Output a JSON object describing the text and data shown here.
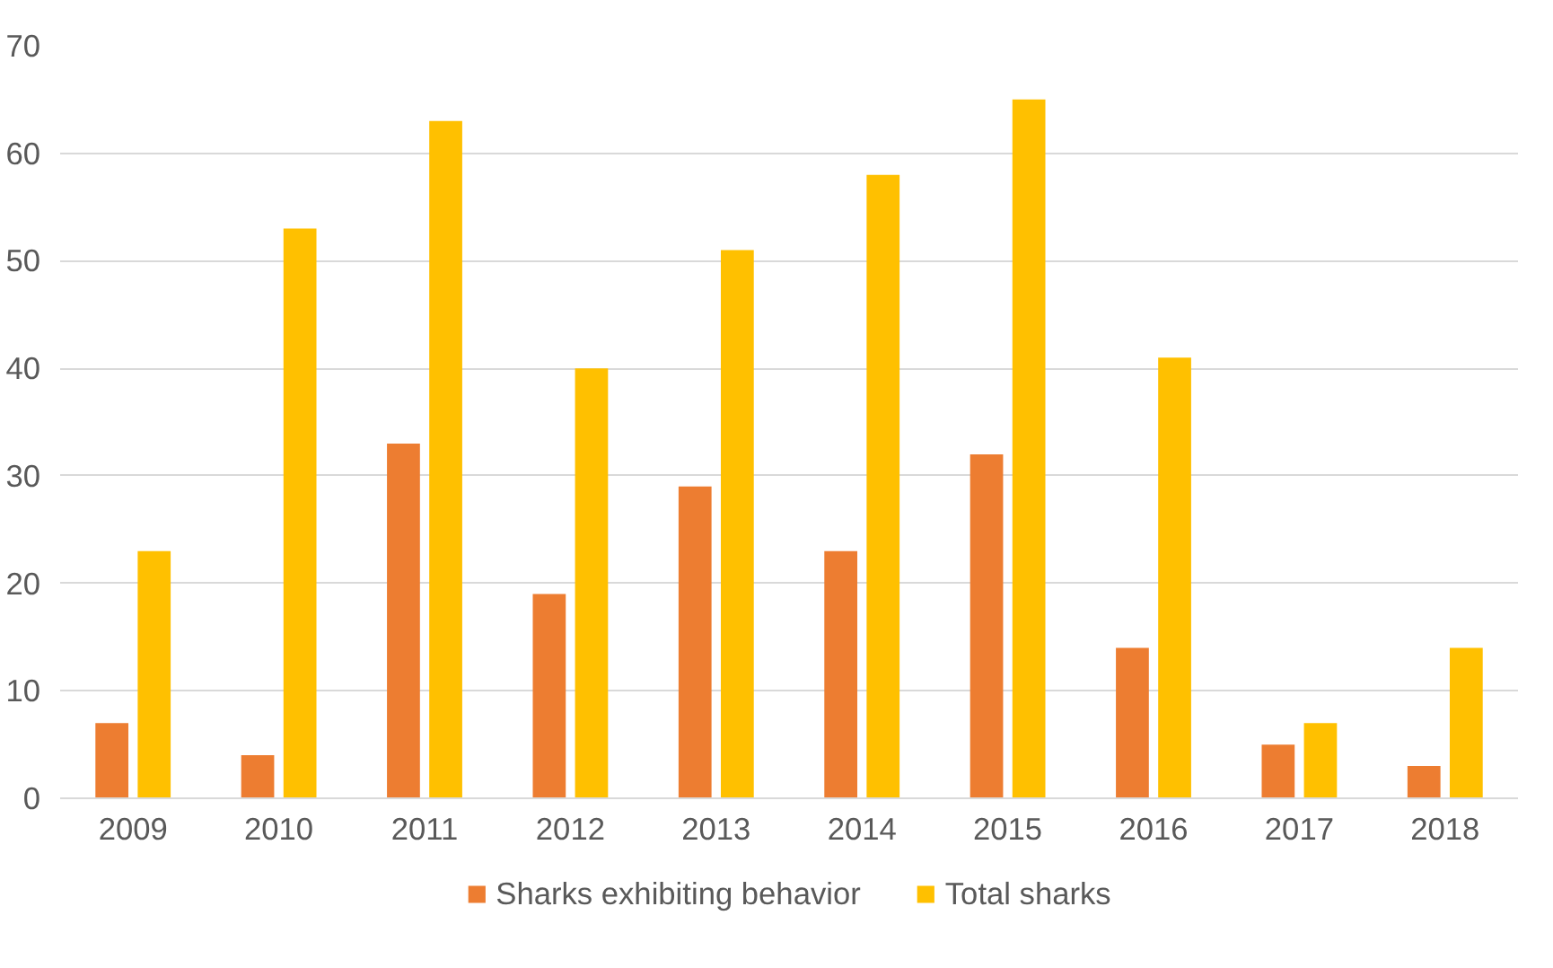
{
  "chart_data": {
    "type": "bar",
    "categories": [
      "2009",
      "2010",
      "2011",
      "2012",
      "2013",
      "2014",
      "2015",
      "2016",
      "2017",
      "2018"
    ],
    "series": [
      {
        "name": "Sharks exhibiting behavior",
        "color": "#ed7d31",
        "values": [
          7,
          4,
          33,
          19,
          29,
          23,
          32,
          14,
          5,
          3
        ]
      },
      {
        "name": "Total sharks",
        "color": "#ffc000",
        "values": [
          23,
          53,
          63,
          40,
          51,
          58,
          65,
          41,
          7,
          14
        ]
      }
    ],
    "ylim": [
      0,
      70
    ],
    "yticks": [
      0,
      10,
      20,
      30,
      40,
      50,
      60,
      70
    ],
    "grid": "y",
    "legend": "bottom"
  }
}
